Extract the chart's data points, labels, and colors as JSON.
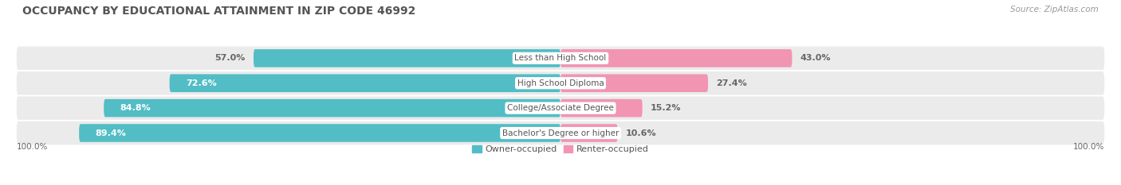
{
  "title": "OCCUPANCY BY EDUCATIONAL ATTAINMENT IN ZIP CODE 46992",
  "source": "Source: ZipAtlas.com",
  "categories": [
    "Less than High School",
    "High School Diploma",
    "College/Associate Degree",
    "Bachelor's Degree or higher"
  ],
  "owner_pct": [
    57.0,
    72.6,
    84.8,
    89.4
  ],
  "renter_pct": [
    43.0,
    27.4,
    15.2,
    10.6
  ],
  "owner_color": "#52bdc5",
  "renter_color": "#f195b2",
  "fig_bg_color": "#ffffff",
  "row_bg_color": "#ebebeb",
  "title_color": "#555555",
  "label_white": "#ffffff",
  "label_dark": "#666666",
  "category_label_color": "#555555",
  "legend_owner": "Owner-occupied",
  "legend_renter": "Renter-occupied",
  "axis_label_left": "100.0%",
  "axis_label_right": "100.0%",
  "title_fontsize": 10,
  "source_fontsize": 7.5,
  "bar_label_fontsize": 8,
  "category_fontsize": 7.5,
  "legend_fontsize": 8,
  "axis_fontsize": 7.5
}
